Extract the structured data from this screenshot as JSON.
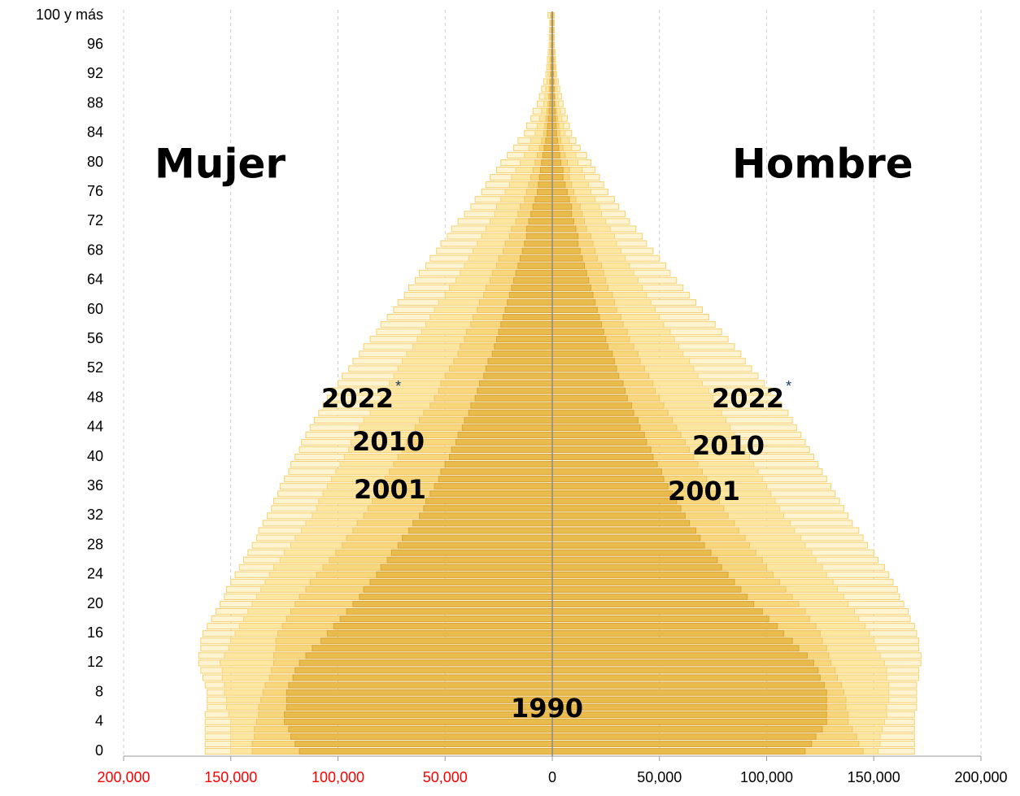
{
  "chart_data": {
    "type": "pyramid",
    "groups": [
      "Mujer",
      "Hombre"
    ],
    "categories": [
      "0",
      null,
      null,
      null,
      "4",
      null,
      null,
      null,
      "8",
      null,
      null,
      null,
      "12",
      null,
      null,
      null,
      "16",
      null,
      null,
      null,
      "20",
      null,
      null,
      null,
      "24",
      null,
      null,
      null,
      "28",
      null,
      null,
      null,
      "32",
      null,
      null,
      null,
      "36",
      null,
      null,
      null,
      "40",
      null,
      null,
      null,
      "44",
      null,
      null,
      null,
      "48",
      null,
      null,
      null,
      "52",
      null,
      null,
      null,
      "56",
      null,
      null,
      null,
      "60",
      null,
      null,
      null,
      "64",
      null,
      null,
      null,
      "68",
      null,
      null,
      null,
      "72",
      null,
      null,
      null,
      "76",
      null,
      null,
      null,
      "80",
      null,
      null,
      null,
      "84",
      null,
      null,
      null,
      "88",
      null,
      null,
      null,
      "92",
      null,
      null,
      null,
      "96",
      null,
      null,
      null,
      "100 y más"
    ],
    "xlim": [
      -200000,
      200000
    ],
    "xticks": [
      {
        "value": -200000,
        "label": "200,000"
      },
      {
        "value": -150000,
        "label": "150,000"
      },
      {
        "value": -100000,
        "label": "100,000"
      },
      {
        "value": -50000,
        "label": "50,000"
      },
      0,
      {
        "value": 50000,
        "label": "50,000"
      },
      {
        "value": 100000,
        "label": "100,000"
      },
      {
        "value": 150000,
        "label": "150,000"
      },
      {
        "value": 200000,
        "label": "200,000"
      }
    ],
    "negative_tick_color": "#ff0000",
    "grid": true,
    "series": [
      {
        "name": "2022",
        "note": "*",
        "color": "#fff4d2",
        "stroke": "#f5d06e",
        "women": [
          162000,
          162000,
          162000,
          162000,
          162000,
          162000,
          161000,
          161000,
          161000,
          162000,
          163000,
          164000,
          165000,
          165000,
          164000,
          164000,
          163000,
          161000,
          159000,
          157000,
          155000,
          153000,
          152000,
          150000,
          148000,
          146000,
          144000,
          142000,
          140000,
          138000,
          137000,
          135000,
          133000,
          131000,
          130000,
          128000,
          127000,
          125000,
          123000,
          122000,
          120000,
          118000,
          117000,
          115000,
          113000,
          111000,
          109000,
          107000,
          105000,
          103000,
          100000,
          98000,
          95000,
          93000,
          90000,
          88000,
          85000,
          82000,
          80000,
          77000,
          74000,
          72000,
          69000,
          67000,
          64000,
          62000,
          59000,
          57000,
          54000,
          52000,
          49000,
          47000,
          44000,
          41000,
          38000,
          36000,
          33000,
          31000,
          29000,
          26000,
          24000,
          21000,
          18000,
          16000,
          13000,
          12000,
          10000,
          9000,
          7000,
          6000,
          5000,
          4000,
          3000,
          2600,
          2300,
          1900,
          1500,
          1400,
          1300,
          1200,
          2000
        ],
        "men": [
          169000,
          169000,
          169000,
          169000,
          169000,
          169000,
          170000,
          170000,
          170000,
          170000,
          171000,
          171000,
          172000,
          172000,
          171000,
          171000,
          170000,
          169000,
          167000,
          166000,
          164000,
          162000,
          161000,
          159000,
          157000,
          155000,
          152000,
          150000,
          147000,
          145000,
          143000,
          140000,
          138000,
          136000,
          134000,
          132000,
          130000,
          128000,
          126000,
          124000,
          122000,
          120000,
          118000,
          116000,
          114000,
          112000,
          110000,
          107000,
          105000,
          102000,
          99000,
          96000,
          93000,
          90000,
          88000,
          85000,
          82000,
          79000,
          76000,
          73000,
          70000,
          67000,
          64000,
          61000,
          58000,
          55000,
          53000,
          50000,
          47000,
          44000,
          42000,
          39000,
          36000,
          34000,
          31000,
          29000,
          26000,
          24000,
          22000,
          20000,
          18000,
          16000,
          13000,
          11000,
          9000,
          8000,
          7000,
          6000,
          5000,
          4300,
          3500,
          2800,
          2000,
          1800,
          1500,
          1300,
          1000,
          1000,
          1000,
          1000,
          1000
        ]
      },
      {
        "name": "2010",
        "color": "#fde6a0",
        "stroke": "#f6d37a",
        "women": [
          150000,
          150000,
          150000,
          150000,
          150000,
          151000,
          152000,
          152000,
          153000,
          153000,
          154000,
          154000,
          155000,
          153000,
          151000,
          150000,
          148000,
          146000,
          144000,
          142000,
          140000,
          138000,
          136000,
          134000,
          132000,
          130000,
          127000,
          125000,
          122000,
          120000,
          117000,
          115000,
          112000,
          110000,
          109000,
          107000,
          105000,
          103000,
          101000,
          99000,
          97000,
          95000,
          94000,
          92000,
          90000,
          88000,
          85000,
          83000,
          80000,
          78000,
          76000,
          74000,
          72000,
          70000,
          68000,
          65000,
          63000,
          61000,
          59000,
          57000,
          55000,
          53000,
          50000,
          48000,
          45000,
          43000,
          41000,
          39000,
          37000,
          35000,
          33000,
          31000,
          29000,
          27000,
          26000,
          24000,
          22000,
          20000,
          19000,
          17000,
          15000,
          13000,
          11000,
          10000,
          8000,
          7000,
          6000,
          5000,
          4000,
          3500,
          3000,
          2500,
          2000,
          1800,
          1500,
          1300,
          1000,
          1000,
          1000,
          1000,
          1000
        ],
        "men": [
          152000,
          153000,
          153000,
          154000,
          155000,
          156000,
          156000,
          157000,
          157000,
          157000,
          156000,
          156000,
          155000,
          153000,
          151000,
          150000,
          148000,
          146000,
          143000,
          141000,
          138000,
          136000,
          133000,
          131000,
          128000,
          126000,
          123000,
          121000,
          118000,
          116000,
          113000,
          111000,
          108000,
          106000,
          104000,
          102000,
          100000,
          98000,
          96000,
          94000,
          92000,
          90000,
          87000,
          85000,
          83000,
          81000,
          79000,
          77000,
          75000,
          73000,
          70000,
          68000,
          66000,
          64000,
          61000,
          59000,
          57000,
          55000,
          52000,
          50000,
          48000,
          46000,
          44000,
          42000,
          40000,
          38000,
          36000,
          34000,
          32000,
          30000,
          29000,
          27000,
          25000,
          23000,
          22000,
          20000,
          18000,
          17000,
          15000,
          14000,
          12000,
          11000,
          9000,
          8000,
          6000,
          5300,
          4500,
          3800,
          3000,
          2600,
          2300,
          1900,
          1500,
          1300,
          1100,
          900,
          700,
          700,
          600,
          600,
          500
        ]
      },
      {
        "name": "2001",
        "color": "#f8d67c",
        "stroke": "#eec463",
        "women": [
          140000,
          140000,
          139000,
          139000,
          138000,
          137000,
          137000,
          136000,
          135000,
          134000,
          132000,
          131000,
          130000,
          130000,
          129000,
          129000,
          128000,
          126000,
          124000,
          122000,
          120000,
          118000,
          115000,
          113000,
          110000,
          107000,
          104000,
          101000,
          98000,
          96000,
          93000,
          91000,
          88000,
          86000,
          84000,
          82000,
          80000,
          78000,
          76000,
          74000,
          72000,
          70000,
          68000,
          66000,
          64000,
          62000,
          60000,
          57000,
          55000,
          53000,
          52000,
          50000,
          48000,
          46000,
          44000,
          43000,
          41000,
          40000,
          38000,
          37000,
          35000,
          34000,
          32000,
          31000,
          29000,
          28000,
          26000,
          25000,
          23000,
          22000,
          20000,
          19000,
          17000,
          16000,
          15000,
          13000,
          12000,
          11000,
          10000,
          9000,
          8000,
          7000,
          6000,
          5000,
          4000,
          3500,
          3000,
          2500,
          2000,
          1800,
          1500,
          1300,
          1000,
          900,
          800,
          600,
          500,
          500,
          500,
          500,
          500
        ],
        "men": [
          145000,
          143000,
          142000,
          140000,
          138000,
          138000,
          137000,
          137000,
          136000,
          135000,
          133000,
          132000,
          130000,
          129000,
          128000,
          126000,
          125000,
          123000,
          120000,
          118000,
          115000,
          112000,
          109000,
          106000,
          103000,
          100000,
          98000,
          95000,
          92000,
          90000,
          87000,
          85000,
          82000,
          80000,
          78000,
          76000,
          74000,
          72000,
          70000,
          68000,
          66000,
          64000,
          62000,
          60000,
          58000,
          56000,
          54000,
          52000,
          50000,
          48000,
          47000,
          45000,
          43000,
          41000,
          40000,
          38000,
          36000,
          35000,
          33000,
          32000,
          30000,
          29000,
          28000,
          26000,
          25000,
          24000,
          23000,
          21000,
          20000,
          19000,
          18000,
          16000,
          15000,
          14000,
          13000,
          11000,
          10000,
          9000,
          8000,
          8000,
          7000,
          6000,
          5000,
          4000,
          3500,
          3000,
          2500,
          2000,
          1500,
          1300,
          1200,
          1000,
          800,
          700,
          600,
          400,
          300,
          300,
          300,
          300,
          300
        ]
      },
      {
        "name": "1990",
        "color": "#e9ba4c",
        "stroke": "#d8a637",
        "women": [
          118000,
          120000,
          122000,
          123000,
          125000,
          125000,
          124000,
          124000,
          124000,
          123000,
          121000,
          120000,
          118000,
          115000,
          112000,
          108000,
          105000,
          102000,
          99000,
          96000,
          93000,
          90000,
          88000,
          85000,
          82000,
          80000,
          77000,
          75000,
          72000,
          70000,
          67000,
          65000,
          62000,
          60000,
          59000,
          57000,
          55000,
          53000,
          52000,
          50000,
          48000,
          47000,
          45000,
          44000,
          42000,
          41000,
          39000,
          38000,
          36000,
          35000,
          34000,
          32000,
          31000,
          30000,
          28000,
          27000,
          26000,
          25000,
          24000,
          23000,
          22000,
          21000,
          20000,
          19000,
          18000,
          17000,
          16000,
          15000,
          14000,
          13000,
          12000,
          12000,
          11000,
          10000,
          9000,
          8000,
          7000,
          6500,
          6000,
          5500,
          5000,
          4400,
          3800,
          3100,
          2500,
          2200,
          1900,
          1500,
          1200,
          1000,
          900,
          800,
          600,
          500,
          500,
          400,
          300,
          300,
          300,
          300,
          300
        ],
        "men": [
          118000,
          121000,
          123000,
          126000,
          128000,
          128000,
          128000,
          128000,
          128000,
          127000,
          125000,
          124000,
          122000,
          119000,
          115000,
          112000,
          108000,
          105000,
          101000,
          98000,
          94000,
          91000,
          88000,
          85000,
          82000,
          79000,
          77000,
          74000,
          71000,
          69000,
          67000,
          64000,
          62000,
          60000,
          58000,
          56000,
          54000,
          52000,
          51000,
          49000,
          47000,
          46000,
          44000,
          43000,
          41000,
          40000,
          38000,
          37000,
          35000,
          34000,
          33000,
          31000,
          30000,
          29000,
          28000,
          26000,
          25000,
          24000,
          23000,
          22000,
          21000,
          20000,
          19000,
          18000,
          17000,
          16000,
          15000,
          14000,
          13000,
          12000,
          12000,
          11000,
          10000,
          9000,
          9000,
          8000,
          7000,
          6000,
          5000,
          5000,
          4000,
          3500,
          3000,
          2500,
          2000,
          1800,
          1500,
          1300,
          1000,
          900,
          800,
          600,
          500,
          400,
          400,
          300,
          200,
          200,
          200,
          200,
          200
        ]
      }
    ]
  }
}
